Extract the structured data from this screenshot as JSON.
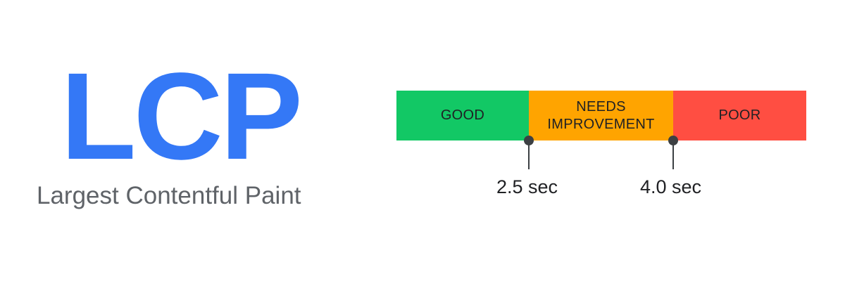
{
  "metric": {
    "abbreviation": "LCP",
    "name": "Largest Contentful Paint",
    "color": "#3478f6"
  },
  "scale": {
    "segments": [
      {
        "label": "GOOD",
        "color": "#12c865"
      },
      {
        "label": "NEEDS IMPROVEMENT",
        "color": "#ffa400"
      },
      {
        "label": "POOR",
        "color": "#ff4e42"
      }
    ],
    "thresholds": [
      {
        "label": "2.5 sec"
      },
      {
        "label": "4.0 sec"
      }
    ]
  }
}
